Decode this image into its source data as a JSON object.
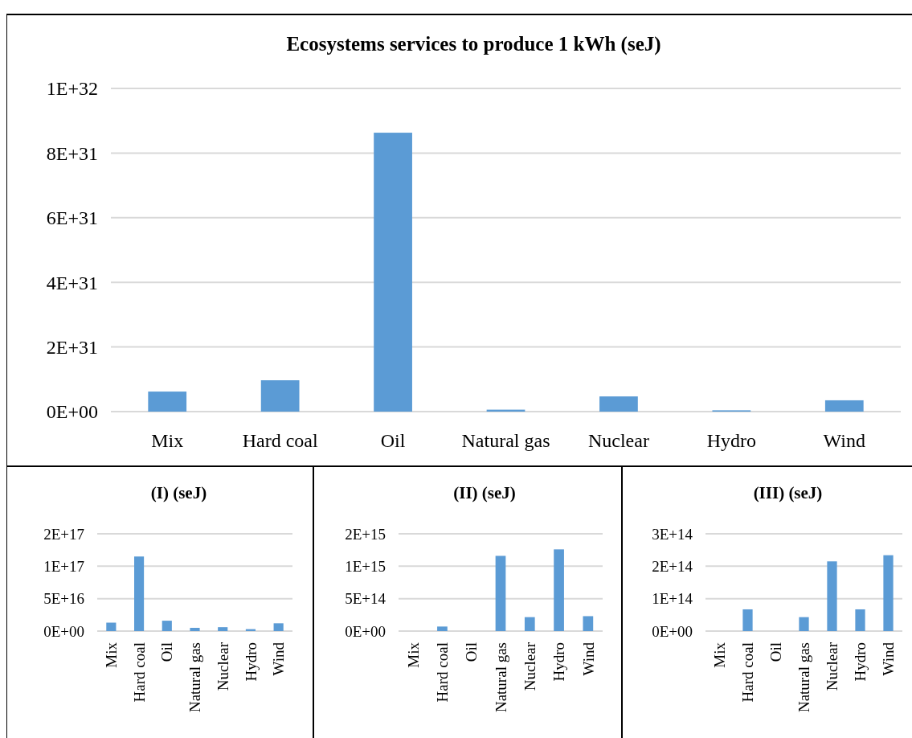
{
  "chart_data": [
    {
      "type": "bar",
      "title": "Ecosystems services to produce 1 kWh (seJ)",
      "categories": [
        "Mix",
        "Hard coal",
        "Oil",
        "Natural gas",
        "Nuclear",
        "Hydro",
        "Wind"
      ],
      "values": [
        6.2e+30,
        9.7e+30,
        8.63e+31,
        6e+29,
        4.7e+30,
        4e+29,
        3.5e+30
      ],
      "color": "#5b9bd5",
      "ylim": [
        0,
        1e+32
      ],
      "yticks": [
        {
          "value": 0,
          "label": "0E+00"
        },
        {
          "value": 2e+31,
          "label": "2E+31"
        },
        {
          "value": 4e+31,
          "label": "4E+31"
        },
        {
          "value": 6e+31,
          "label": "6E+31"
        },
        {
          "value": 8e+31,
          "label": "8E+31"
        },
        {
          "value": 1e+32,
          "label": "1E+32"
        }
      ],
      "grid": "y"
    },
    {
      "type": "bar",
      "title": "(I) (seJ)",
      "categories": [
        "Mix",
        "Hard coal",
        "Oil",
        "Natural gas",
        "Nuclear",
        "Hydro",
        "Wind"
      ],
      "values": [
        1.3e+16,
        1.15e+17,
        1.6e+16,
        5000000000000000.0,
        6000000000000000.0,
        3000000000000000.0,
        1.2e+16
      ],
      "color": "#5b9bd5",
      "ylim": [
        0,
        1.5e+17
      ],
      "yticks": [
        {
          "value": 0,
          "label": "0E+00"
        },
        {
          "value": 5e+16,
          "label": "5E+16"
        },
        {
          "value": 1e+17,
          "label": "1E+17"
        },
        {
          "value": 1.5e+17,
          "label": "2E+17"
        }
      ],
      "grid": "y"
    },
    {
      "type": "bar",
      "title": "(II) (seJ)",
      "categories": [
        "Mix",
        "Hard coal",
        "Oil",
        "Natural gas",
        "Nuclear",
        "Hydro",
        "Wind"
      ],
      "values": [
        0,
        70000000000000.0,
        0,
        1160000000000000.0,
        215000000000000.0,
        1260000000000000.0,
        230000000000000.0
      ],
      "color": "#5b9bd5",
      "ylim": [
        0,
        1500000000000000.0
      ],
      "yticks": [
        {
          "value": 0,
          "label": "0E+00"
        },
        {
          "value": 500000000000000.0,
          "label": "5E+14"
        },
        {
          "value": 1000000000000000.0,
          "label": "1E+15"
        },
        {
          "value": 1500000000000000.0,
          "label": "2E+15"
        }
      ],
      "grid": "y"
    },
    {
      "type": "bar",
      "title": "(III) (seJ)",
      "categories": [
        "Mix",
        "Hard coal",
        "Oil",
        "Natural gas",
        "Nuclear",
        "Hydro",
        "Wind"
      ],
      "values": [
        0,
        67000000000000.0,
        0,
        43000000000000.0,
        215000000000000.0,
        67000000000000.0,
        234000000000000.0
      ],
      "color": "#5b9bd5",
      "ylim": [
        0,
        300000000000000.0
      ],
      "yticks": [
        {
          "value": 0,
          "label": "0E+00"
        },
        {
          "value": 100000000000000.0,
          "label": "1E+14"
        },
        {
          "value": 200000000000000.0,
          "label": "2E+14"
        },
        {
          "value": 300000000000000.0,
          "label": "3E+14"
        }
      ],
      "grid": "y"
    }
  ]
}
